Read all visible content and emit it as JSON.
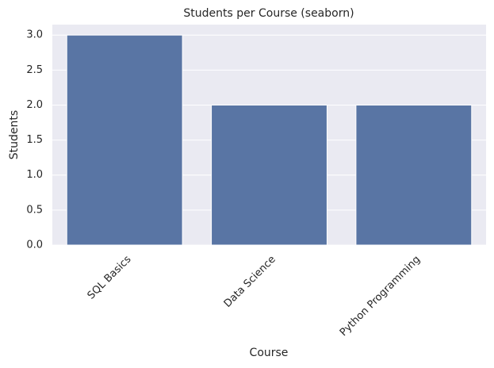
{
  "chart_data": {
    "type": "bar",
    "title": "Students per Course (seaborn)",
    "x_label": "Course",
    "y_label": "Students",
    "categories": [
      "SQL Basics",
      "Data Science",
      "Python Programming"
    ],
    "values": [
      3,
      2,
      2
    ],
    "color": "#5975a4",
    "ylim": [
      0,
      3.15
    ],
    "yticks": [
      {
        "value": 0,
        "label": "0.0"
      },
      {
        "value": 0.5,
        "label": "0.5"
      },
      {
        "value": 1,
        "label": "1.0"
      },
      {
        "value": 1.5,
        "label": "1.5"
      },
      {
        "value": 2,
        "label": "2.0"
      },
      {
        "value": 2.5,
        "label": "2.5"
      },
      {
        "value": 3,
        "label": "3.0"
      }
    ],
    "grid": true
  }
}
